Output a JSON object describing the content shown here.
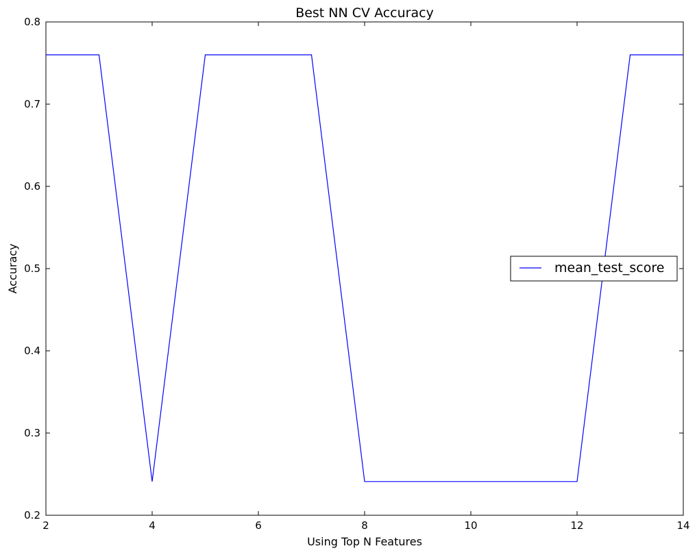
{
  "chart_data": {
    "type": "line",
    "title": "Best NN CV Accuracy",
    "xlabel": "Using Top N Features",
    "ylabel": "Accuracy",
    "xlim": [
      2,
      14
    ],
    "ylim": [
      0.2,
      0.8
    ],
    "xticks": [
      2,
      4,
      6,
      8,
      10,
      12,
      14
    ],
    "yticks": [
      0.2,
      0.3,
      0.4,
      0.5,
      0.6,
      0.7,
      0.8
    ],
    "grid": false,
    "legend_position": "center-right",
    "series": [
      {
        "name": "mean_test_score",
        "color": "#0000ff",
        "x": [
          2,
          3,
          4,
          5,
          6,
          7,
          8,
          9,
          10,
          11,
          12,
          13,
          14
        ],
        "y": [
          0.76,
          0.76,
          0.241,
          0.76,
          0.76,
          0.76,
          0.241,
          0.241,
          0.241,
          0.241,
          0.241,
          0.76,
          0.76
        ]
      }
    ]
  }
}
